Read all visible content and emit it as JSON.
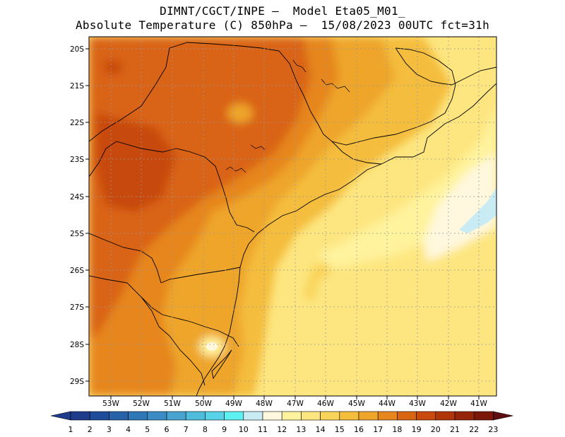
{
  "header": {
    "line1": "DIMNT/CGCT/INPE –  Model Eta05_M01_",
    "line2": "Absolute Temperature (C) 850hPa –  15/08/2023 00UTC fct=31h"
  },
  "axes": {
    "lat_labels": [
      "20S",
      "21S",
      "22S",
      "23S",
      "24S",
      "25S",
      "26S",
      "27S",
      "28S",
      "29S"
    ],
    "lon_labels": [
      "53W",
      "52W",
      "51W",
      "50W",
      "49W",
      "48W",
      "47W",
      "46W",
      "45W",
      "44W",
      "43W",
      "42W",
      "41W"
    ]
  },
  "colorbar": {
    "labels": [
      "1",
      "2",
      "3",
      "4",
      "5",
      "6",
      "7",
      "8",
      "9",
      "10",
      "11",
      "12",
      "13",
      "14",
      "15",
      "16",
      "17",
      "18",
      "19",
      "20",
      "21",
      "22",
      "23"
    ],
    "colors": [
      "#1e3c8c",
      "#1e4c9b",
      "#2761a8",
      "#2f77b7",
      "#3b8cc4",
      "#47a4d0",
      "#4fbcdc",
      "#56d3e8",
      "#5ef1f2",
      "#c9ecf4",
      "#fff8de",
      "#fff39e",
      "#fde680",
      "#f9d45a",
      "#f4bd3c",
      "#eea52a",
      "#e6861c",
      "#d96412",
      "#c84a0c",
      "#b0360a",
      "#952508",
      "#7c1808",
      "#5e0d10"
    ]
  }
}
